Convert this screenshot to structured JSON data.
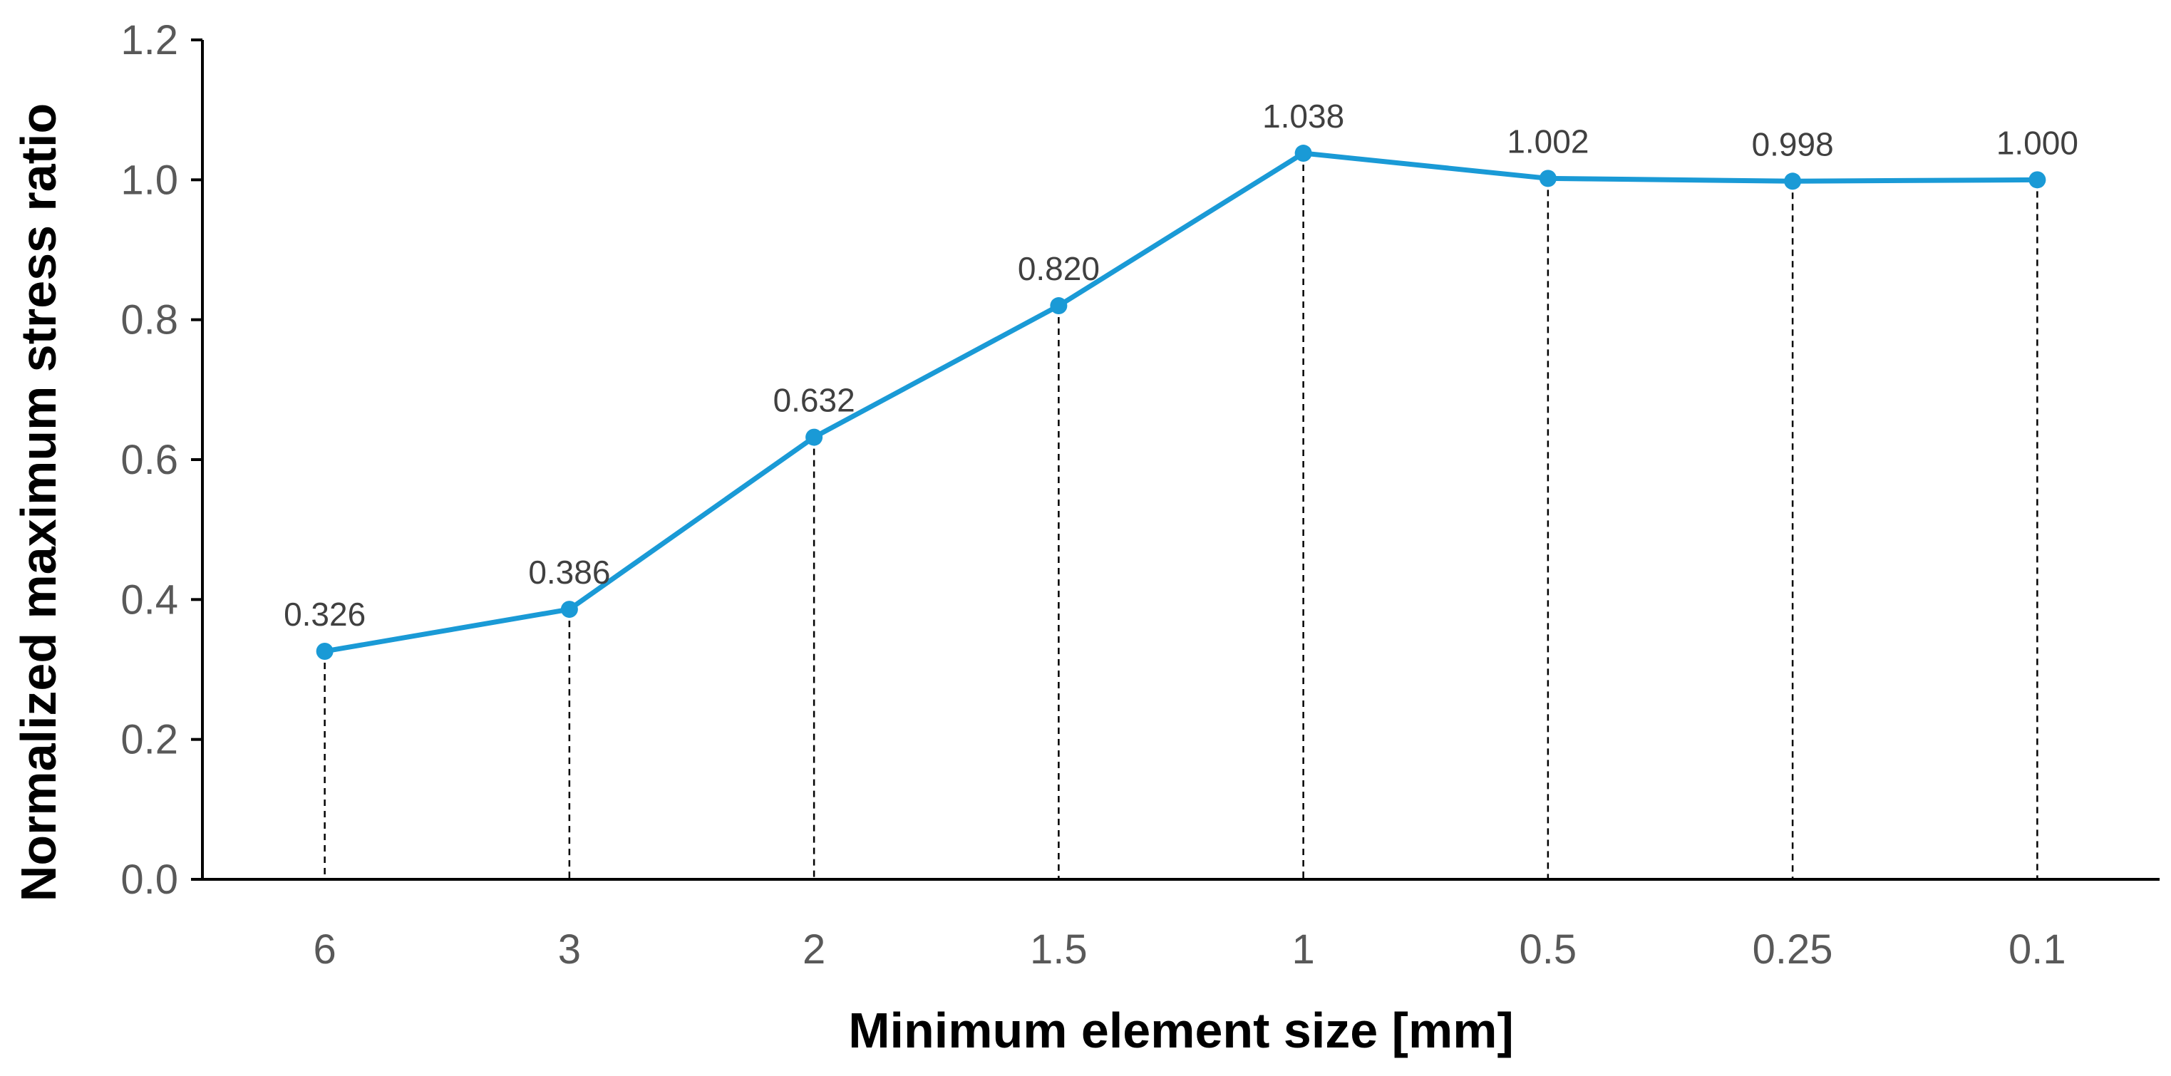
{
  "chart_data": {
    "type": "line",
    "categories": [
      "6",
      "3",
      "2",
      "1.5",
      "1",
      "0.5",
      "0.25",
      "0.1"
    ],
    "series": [
      {
        "values": [
          0.326,
          0.386,
          0.632,
          0.82,
          1.038,
          1.002,
          0.998,
          1.0
        ],
        "labels": [
          "0.326",
          "0.386",
          "0.632",
          "0.820",
          "1.038",
          "1.002",
          "0.998",
          "1.000"
        ],
        "color": "#1a9ad6",
        "markers": true
      }
    ],
    "xlabel": "Minimum element size [mm]",
    "ylabel": "Normalized maximum stress ratio",
    "ylim": [
      0,
      1.2
    ],
    "yticks": [
      "0.0",
      "0.2",
      "0.4",
      "0.6",
      "0.8",
      "1.0",
      "1.2"
    ],
    "grid": false,
    "drop_lines": "dashed vertical lines from each point to the x-axis",
    "colors": {
      "line": "#1a9ad6",
      "axis": "#000000",
      "tick_text": "#595959",
      "label_text": "#404040"
    }
  }
}
